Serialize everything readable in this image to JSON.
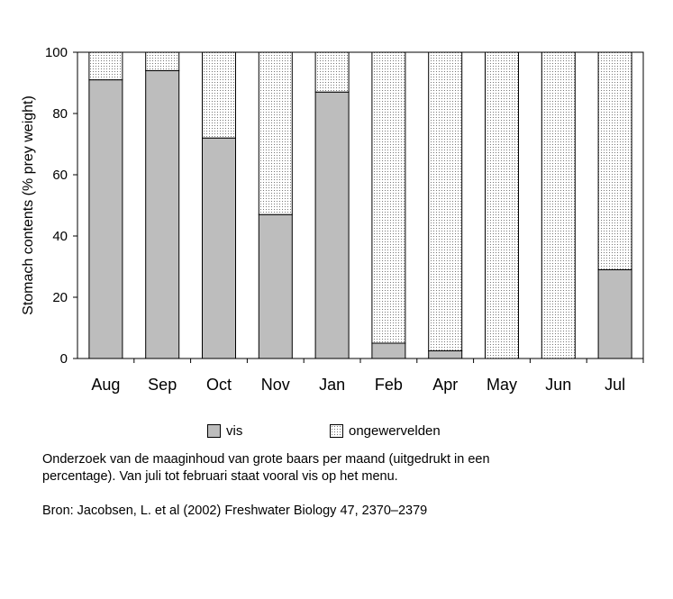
{
  "chart_data": {
    "type": "bar",
    "stacked": true,
    "ylabel": "Stomach contents (% prey weight)",
    "xlabel": "",
    "ylim": [
      0,
      100
    ],
    "yticks": [
      "0",
      "20",
      "40",
      "60",
      "80",
      "100"
    ],
    "categories": [
      "Aug",
      "Sep",
      "Oct",
      "Nov",
      "Jan",
      "Feb",
      "Apr",
      "May",
      "Jun",
      "Jul"
    ],
    "series": [
      {
        "name": "vis",
        "color": "#bdbdbd",
        "values": [
          91,
          94,
          72,
          47,
          87,
          5,
          2.5,
          0,
          0,
          29
        ]
      },
      {
        "name": "ongewervelden",
        "color": "dotted",
        "values": [
          9,
          6,
          28,
          53,
          13,
          95,
          97.5,
          100,
          100,
          71
        ]
      }
    ],
    "legend_position": "bottom"
  },
  "caption": {
    "line1": "Onderzoek van de maaginhoud van grote baars per maand (uitgedrukt in een",
    "line2": "percentage). Van juli tot februari staat vooral vis op het menu.",
    "source": "Bron: Jacobsen, L. et al (2002) Freshwater Biology 47, 2370–2379"
  }
}
